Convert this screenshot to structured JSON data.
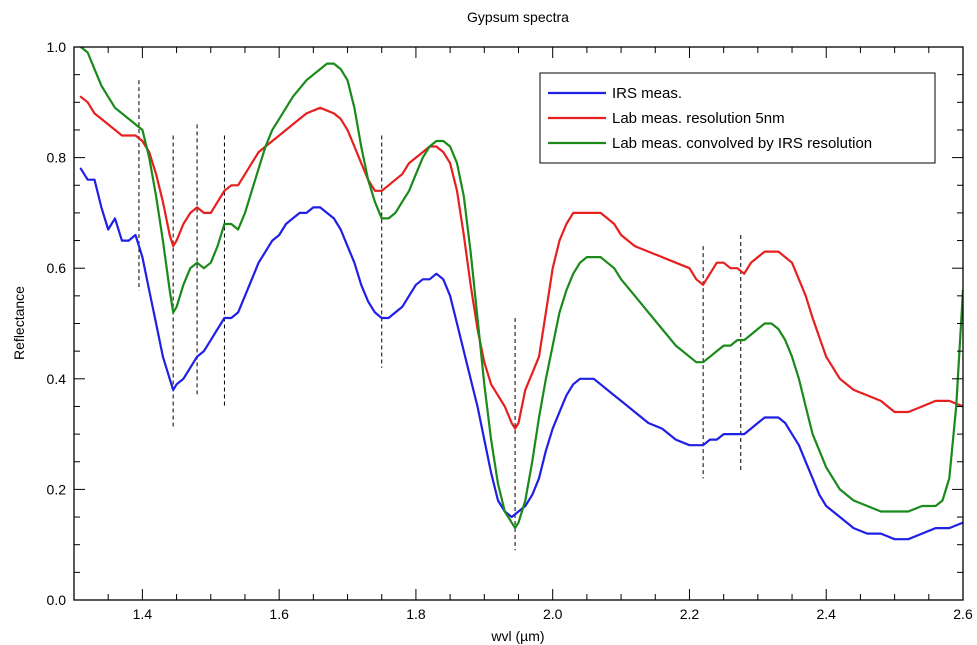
{
  "chart_data": {
    "type": "line",
    "title": "Gypsum spectra",
    "xlabel": "wvl (µm)",
    "ylabel": "Reflectance",
    "xlim": [
      1.3,
      2.6
    ],
    "ylim": [
      0.0,
      1.0
    ],
    "xticks": [
      1.4,
      1.6,
      1.8,
      2.0,
      2.2,
      2.4,
      2.6
    ],
    "xtick_labels": [
      "1.4",
      "1.6",
      "1.8",
      "2.0",
      "2.2",
      "2.4",
      "2.6"
    ],
    "yticks": [
      0.0,
      0.2,
      0.4,
      0.6,
      0.8,
      1.0
    ],
    "ytick_labels": [
      "0.0",
      "0.2",
      "0.4",
      "0.6",
      "0.8",
      "1.0"
    ],
    "grid": false,
    "legend_position": "top-right",
    "series": [
      {
        "name": "IRS meas.",
        "color": "#1f1fe6",
        "x": [
          1.31,
          1.32,
          1.33,
          1.34,
          1.35,
          1.36,
          1.37,
          1.38,
          1.39,
          1.4,
          1.41,
          1.42,
          1.43,
          1.44,
          1.445,
          1.45,
          1.46,
          1.47,
          1.48,
          1.49,
          1.5,
          1.51,
          1.52,
          1.53,
          1.54,
          1.55,
          1.56,
          1.57,
          1.58,
          1.59,
          1.6,
          1.61,
          1.62,
          1.63,
          1.64,
          1.65,
          1.66,
          1.67,
          1.68,
          1.69,
          1.7,
          1.71,
          1.72,
          1.73,
          1.74,
          1.75,
          1.76,
          1.77,
          1.78,
          1.79,
          1.8,
          1.81,
          1.82,
          1.83,
          1.84,
          1.85,
          1.86,
          1.87,
          1.88,
          1.89,
          1.9,
          1.91,
          1.92,
          1.93,
          1.94,
          1.95,
          1.96,
          1.97,
          1.98,
          1.99,
          2.0,
          2.01,
          2.02,
          2.03,
          2.04,
          2.05,
          2.06,
          2.07,
          2.08,
          2.09,
          2.1,
          2.12,
          2.14,
          2.16,
          2.18,
          2.2,
          2.21,
          2.22,
          2.23,
          2.24,
          2.25,
          2.26,
          2.27,
          2.28,
          2.29,
          2.3,
          2.31,
          2.32,
          2.33,
          2.34,
          2.35,
          2.36,
          2.37,
          2.38,
          2.39,
          2.4,
          2.42,
          2.44,
          2.46,
          2.48,
          2.5,
          2.52,
          2.54,
          2.56,
          2.58,
          2.6
        ],
        "y": [
          0.78,
          0.76,
          0.76,
          0.71,
          0.67,
          0.69,
          0.65,
          0.65,
          0.66,
          0.62,
          0.56,
          0.5,
          0.44,
          0.4,
          0.38,
          0.39,
          0.4,
          0.42,
          0.44,
          0.45,
          0.47,
          0.49,
          0.51,
          0.51,
          0.52,
          0.55,
          0.58,
          0.61,
          0.63,
          0.65,
          0.66,
          0.68,
          0.69,
          0.7,
          0.7,
          0.71,
          0.71,
          0.7,
          0.69,
          0.67,
          0.64,
          0.61,
          0.57,
          0.54,
          0.52,
          0.51,
          0.51,
          0.52,
          0.53,
          0.55,
          0.57,
          0.58,
          0.58,
          0.59,
          0.58,
          0.55,
          0.5,
          0.45,
          0.4,
          0.35,
          0.29,
          0.23,
          0.18,
          0.16,
          0.15,
          0.16,
          0.17,
          0.19,
          0.22,
          0.27,
          0.31,
          0.34,
          0.37,
          0.39,
          0.4,
          0.4,
          0.4,
          0.39,
          0.38,
          0.37,
          0.36,
          0.34,
          0.32,
          0.31,
          0.29,
          0.28,
          0.28,
          0.28,
          0.29,
          0.29,
          0.3,
          0.3,
          0.3,
          0.3,
          0.31,
          0.32,
          0.33,
          0.33,
          0.33,
          0.32,
          0.3,
          0.28,
          0.25,
          0.22,
          0.19,
          0.17,
          0.15,
          0.13,
          0.12,
          0.12,
          0.11,
          0.11,
          0.12,
          0.13,
          0.13,
          0.14
        ]
      },
      {
        "name": "Lab meas. resolution 5nm",
        "color": "#e61f1f",
        "x": [
          1.31,
          1.32,
          1.33,
          1.34,
          1.35,
          1.36,
          1.37,
          1.38,
          1.39,
          1.4,
          1.41,
          1.42,
          1.43,
          1.44,
          1.445,
          1.45,
          1.46,
          1.47,
          1.48,
          1.49,
          1.5,
          1.51,
          1.52,
          1.53,
          1.54,
          1.55,
          1.56,
          1.57,
          1.58,
          1.59,
          1.6,
          1.62,
          1.64,
          1.66,
          1.68,
          1.69,
          1.7,
          1.71,
          1.72,
          1.73,
          1.74,
          1.75,
          1.76,
          1.77,
          1.78,
          1.79,
          1.8,
          1.81,
          1.82,
          1.83,
          1.84,
          1.85,
          1.86,
          1.87,
          1.88,
          1.89,
          1.9,
          1.91,
          1.92,
          1.93,
          1.94,
          1.945,
          1.95,
          1.96,
          1.97,
          1.98,
          1.99,
          2.0,
          2.01,
          2.02,
          2.03,
          2.04,
          2.05,
          2.06,
          2.07,
          2.08,
          2.09,
          2.1,
          2.12,
          2.14,
          2.16,
          2.18,
          2.2,
          2.21,
          2.22,
          2.23,
          2.24,
          2.25,
          2.26,
          2.27,
          2.28,
          2.29,
          2.3,
          2.31,
          2.32,
          2.33,
          2.34,
          2.35,
          2.36,
          2.37,
          2.38,
          2.4,
          2.42,
          2.44,
          2.46,
          2.48,
          2.5,
          2.52,
          2.54,
          2.56,
          2.58,
          2.6
        ],
        "y": [
          0.91,
          0.9,
          0.88,
          0.87,
          0.86,
          0.85,
          0.84,
          0.84,
          0.84,
          0.83,
          0.81,
          0.77,
          0.72,
          0.66,
          0.64,
          0.65,
          0.68,
          0.7,
          0.71,
          0.7,
          0.7,
          0.72,
          0.74,
          0.75,
          0.75,
          0.77,
          0.79,
          0.81,
          0.82,
          0.83,
          0.84,
          0.86,
          0.88,
          0.89,
          0.88,
          0.87,
          0.85,
          0.82,
          0.79,
          0.76,
          0.74,
          0.74,
          0.75,
          0.76,
          0.77,
          0.79,
          0.8,
          0.81,
          0.82,
          0.82,
          0.81,
          0.79,
          0.74,
          0.66,
          0.57,
          0.49,
          0.43,
          0.39,
          0.37,
          0.35,
          0.32,
          0.31,
          0.32,
          0.38,
          0.41,
          0.44,
          0.52,
          0.6,
          0.65,
          0.68,
          0.7,
          0.7,
          0.7,
          0.7,
          0.7,
          0.69,
          0.68,
          0.66,
          0.64,
          0.63,
          0.62,
          0.61,
          0.6,
          0.58,
          0.57,
          0.59,
          0.61,
          0.61,
          0.6,
          0.6,
          0.59,
          0.61,
          0.62,
          0.63,
          0.63,
          0.63,
          0.62,
          0.61,
          0.58,
          0.55,
          0.51,
          0.44,
          0.4,
          0.38,
          0.37,
          0.36,
          0.34,
          0.34,
          0.35,
          0.36,
          0.36,
          0.35
        ]
      },
      {
        "name": "Lab meas. convolved by IRS resolution",
        "color": "#1a8a1a",
        "x": [
          1.31,
          1.32,
          1.33,
          1.34,
          1.35,
          1.36,
          1.37,
          1.38,
          1.39,
          1.4,
          1.41,
          1.42,
          1.43,
          1.44,
          1.445,
          1.45,
          1.46,
          1.47,
          1.48,
          1.49,
          1.5,
          1.51,
          1.52,
          1.53,
          1.54,
          1.55,
          1.56,
          1.57,
          1.58,
          1.59,
          1.6,
          1.62,
          1.64,
          1.66,
          1.67,
          1.68,
          1.69,
          1.7,
          1.71,
          1.72,
          1.73,
          1.74,
          1.75,
          1.76,
          1.77,
          1.78,
          1.79,
          1.8,
          1.81,
          1.82,
          1.83,
          1.84,
          1.85,
          1.86,
          1.87,
          1.88,
          1.89,
          1.9,
          1.91,
          1.92,
          1.93,
          1.94,
          1.945,
          1.95,
          1.96,
          1.97,
          1.98,
          1.99,
          2.0,
          2.01,
          2.02,
          2.03,
          2.04,
          2.05,
          2.06,
          2.07,
          2.08,
          2.09,
          2.1,
          2.12,
          2.14,
          2.16,
          2.18,
          2.2,
          2.21,
          2.22,
          2.23,
          2.24,
          2.25,
          2.26,
          2.27,
          2.28,
          2.29,
          2.3,
          2.31,
          2.32,
          2.33,
          2.34,
          2.35,
          2.36,
          2.37,
          2.38,
          2.4,
          2.42,
          2.44,
          2.46,
          2.48,
          2.5,
          2.52,
          2.54,
          2.56,
          2.57,
          2.58,
          2.59,
          2.6
        ],
        "y": [
          1.0,
          0.99,
          0.96,
          0.93,
          0.91,
          0.89,
          0.88,
          0.87,
          0.86,
          0.85,
          0.8,
          0.73,
          0.65,
          0.56,
          0.52,
          0.53,
          0.57,
          0.6,
          0.61,
          0.6,
          0.61,
          0.64,
          0.68,
          0.68,
          0.67,
          0.7,
          0.74,
          0.78,
          0.82,
          0.85,
          0.87,
          0.91,
          0.94,
          0.96,
          0.97,
          0.97,
          0.96,
          0.94,
          0.89,
          0.82,
          0.76,
          0.72,
          0.69,
          0.69,
          0.7,
          0.72,
          0.74,
          0.77,
          0.8,
          0.82,
          0.83,
          0.83,
          0.82,
          0.79,
          0.73,
          0.63,
          0.51,
          0.39,
          0.29,
          0.21,
          0.16,
          0.14,
          0.13,
          0.14,
          0.18,
          0.25,
          0.33,
          0.4,
          0.46,
          0.52,
          0.56,
          0.59,
          0.61,
          0.62,
          0.62,
          0.62,
          0.61,
          0.6,
          0.58,
          0.55,
          0.52,
          0.49,
          0.46,
          0.44,
          0.43,
          0.43,
          0.44,
          0.45,
          0.46,
          0.46,
          0.47,
          0.47,
          0.48,
          0.49,
          0.5,
          0.5,
          0.49,
          0.47,
          0.44,
          0.4,
          0.35,
          0.3,
          0.24,
          0.2,
          0.18,
          0.17,
          0.16,
          0.16,
          0.16,
          0.17,
          0.17,
          0.18,
          0.22,
          0.35,
          0.56
        ]
      }
    ],
    "vertical_dashed_lines": [
      {
        "x": 1.395,
        "y_range": [
          0.56,
          0.94
        ]
      },
      {
        "x": 1.445,
        "y_range": [
          0.31,
          0.84
        ]
      },
      {
        "x": 1.48,
        "y_range": [
          0.37,
          0.86
        ]
      },
      {
        "x": 1.52,
        "y_range": [
          0.35,
          0.84
        ]
      },
      {
        "x": 1.75,
        "y_range": [
          0.42,
          0.84
        ]
      },
      {
        "x": 1.945,
        "y_range": [
          0.09,
          0.51
        ]
      },
      {
        "x": 2.22,
        "y_range": [
          0.22,
          0.64
        ]
      },
      {
        "x": 2.275,
        "y_range": [
          0.23,
          0.66
        ]
      }
    ]
  }
}
